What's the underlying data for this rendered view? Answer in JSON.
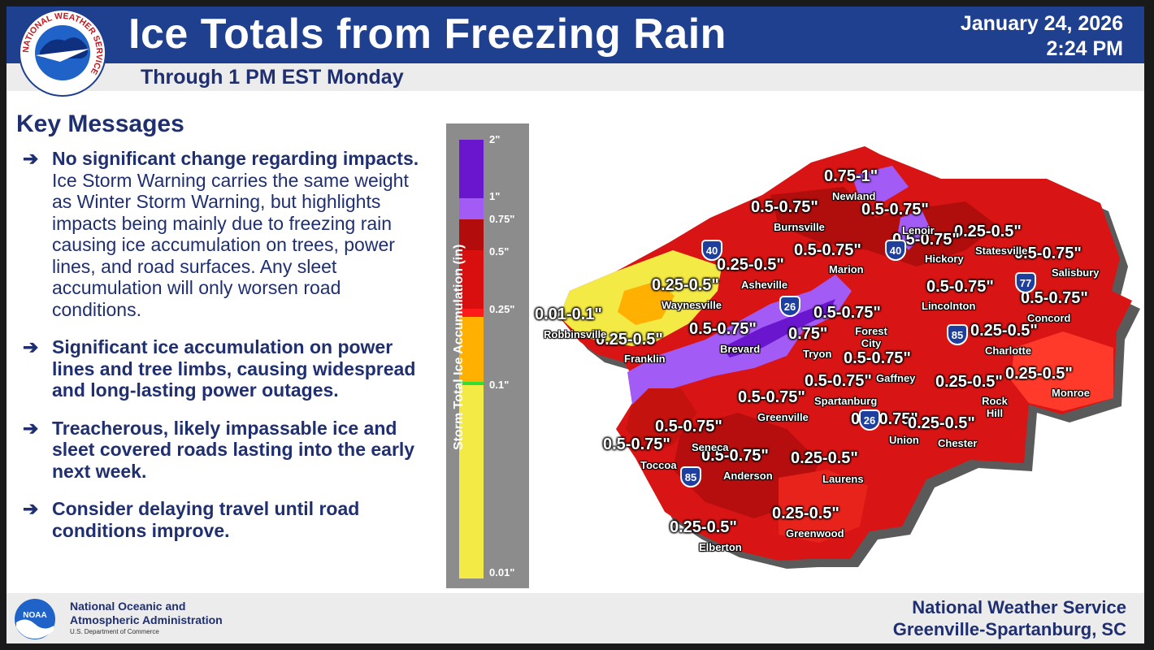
{
  "header": {
    "title": "Ice Totals from Freezing Rain",
    "subtitle": "Through 1 PM EST Monday",
    "date": "January 24, 2026",
    "time": "2:24 PM"
  },
  "logo": {
    "ring_text": "NATIONAL WEATHER SERVICE",
    "icon": "nws-logo-icon"
  },
  "key_messages": {
    "title": "Key Messages",
    "arrow": "➔",
    "items": [
      {
        "bold": "No significant change regarding impacts.",
        "text": " Ice Storm Warning carries the same weight as Winter Storm Warning, but highlights impacts being mainly due to freezing rain causing ice accumulation on trees, power lines, and road surfaces. Any sleet accumulation will only worsen road conditions."
      },
      {
        "bold": "Significant ice accumulation on power lines and tree limbs, causing widespread and long-lasting power outages.",
        "text": ""
      },
      {
        "bold": "Treacherous, likely impassable ice and sleet covered roads lasting into the early next week.",
        "text": ""
      },
      {
        "bold": "Consider delaying travel until road conditions improve.",
        "text": ""
      }
    ]
  },
  "legend": {
    "title": "Storm Total Ice Accumulation (in)",
    "ticks": [
      "2\"",
      "1\"",
      "0.75\"",
      "0.5\"",
      "0.25\"",
      "0.1\"",
      "0.01\""
    ],
    "colors": {
      "2": "#6a16cf",
      "1": "#a35bf5",
      "0.75": "#b30c0c",
      "0.5": "#d90f0f",
      "0.25": "#ff1a1a",
      "0.1_orange": "#ffb000",
      "0.1_green": "#33dd33",
      "0.01": "#f4ea46"
    }
  },
  "map": {
    "range_labels": [
      "0.75-1\"",
      "0.5-0.75\"",
      "0.5-0.75\"",
      "0.25-0.5\"",
      "0.5-0.75\"",
      "0.5-0.75\"",
      "0.25-0.5\"",
      "0.25-0.5\"",
      "0.5-0.75\"",
      "0.01-0.1\"",
      "0.25-0.5\"",
      "0.5-0.75\"",
      "0.5-0.75\"",
      "0.5-0.75\"",
      "0.5-0.75\"",
      "0.75\"",
      "0.5-0.75\"",
      "0.5-0.75\"",
      "0.25-0.5\"",
      "0.25-0.5\"",
      "0.25-0.5\"",
      "0.5-0.75\"",
      "0.5-0.75\"",
      "0.25-0.5\"",
      "0.5-0.75\"",
      "0.5-0.75\"",
      "0.5-0.75\"",
      "0.25-0.5\"",
      "0.25-0.5\"",
      "0.25-0.5\""
    ],
    "cities": [
      "Newland",
      "Burnsville",
      "Lenoir",
      "Statesville",
      "Hickory",
      "Marion",
      "Salisbury",
      "Asheville",
      "Waynesville",
      "Lincolnton",
      "Concord",
      "Robbinsville",
      "Forest City",
      "Brevard",
      "Franklin",
      "Tryon",
      "Charlotte",
      "Gaffney",
      "Spartanburg",
      "Rock Hill",
      "Monroe",
      "Greenville",
      "Union",
      "Chester",
      "Seneca",
      "Toccoa",
      "Anderson",
      "Laurens",
      "Greenwood",
      "Elberton"
    ],
    "interstates": [
      "40",
      "40",
      "26",
      "77",
      "85",
      "26",
      "85"
    ]
  },
  "footer": {
    "noaa_logo_text": "NOAA",
    "noaa_line1": "National Oceanic and",
    "noaa_line2": "Atmospheric Administration",
    "noaa_dept": "U.S. Department of Commerce",
    "office_line1": "National Weather Service",
    "office_line2": "Greenville-Spartanburg, SC"
  }
}
